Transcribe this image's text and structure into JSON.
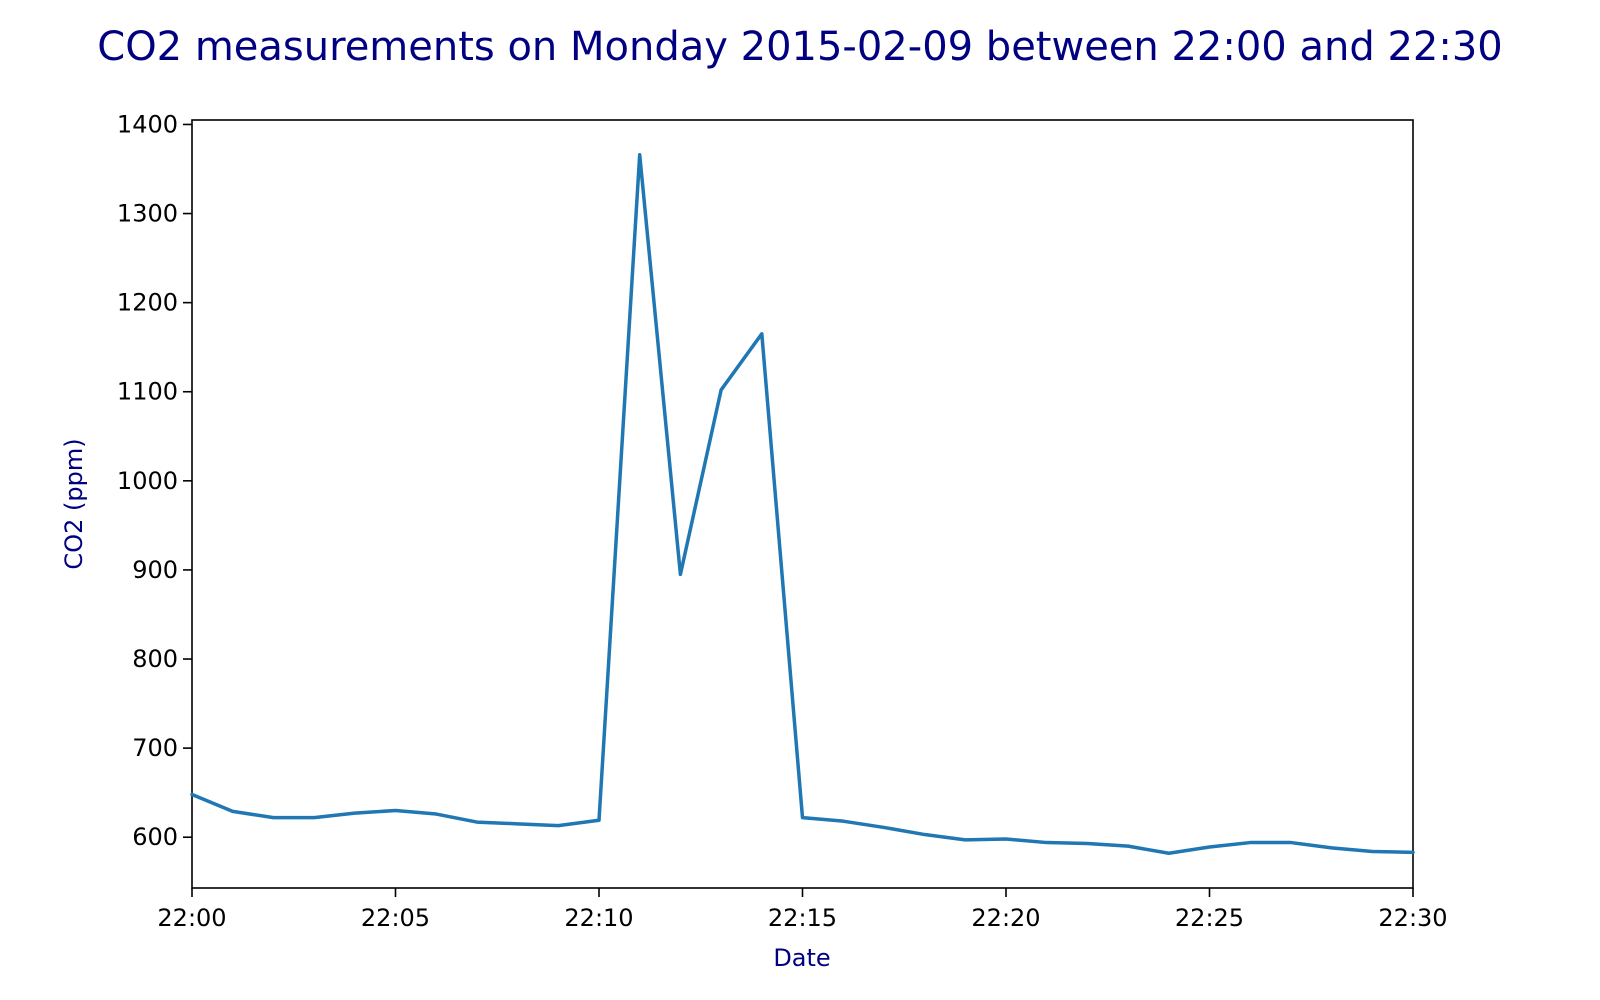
{
  "chart_data": {
    "type": "line",
    "title": "CO2 measurements on Monday 2015-02-09 between 22:00 and 22:30",
    "xlabel": "Date",
    "ylabel": "CO2 (ppm)",
    "xlim": [
      "22:00",
      "22:30"
    ],
    "ylim": [
      543,
      1405
    ],
    "x_ticks": [
      "22:00",
      "22:05",
      "22:10",
      "22:15",
      "22:20",
      "22:25",
      "22:30"
    ],
    "y_ticks": [
      600,
      700,
      800,
      900,
      1000,
      1100,
      1200,
      1300,
      1400
    ],
    "grid": false,
    "colors": {
      "title": "#000080",
      "axis_label": "#000080",
      "line": "#1f77b4",
      "axes": "#000000"
    },
    "series": [
      {
        "x": [
          "22:00",
          "22:01",
          "22:02",
          "22:03",
          "22:04",
          "22:05",
          "22:06",
          "22:07",
          "22:08",
          "22:09",
          "22:10",
          "22:11",
          "22:12",
          "22:13",
          "22:14",
          "22:15",
          "22:16",
          "22:17",
          "22:18",
          "22:19",
          "22:20",
          "22:21",
          "22:22",
          "22:23",
          "22:24",
          "22:25",
          "22:26",
          "22:27",
          "22:28",
          "22:29",
          "22:30"
        ],
        "values": [
          648,
          629,
          622,
          622,
          627,
          630,
          626,
          617,
          615,
          613,
          619,
          1366,
          895,
          1102,
          1165,
          622,
          618,
          611,
          603,
          597,
          598,
          594,
          593,
          590,
          582,
          589,
          594,
          594,
          588,
          584,
          583
        ]
      }
    ]
  }
}
